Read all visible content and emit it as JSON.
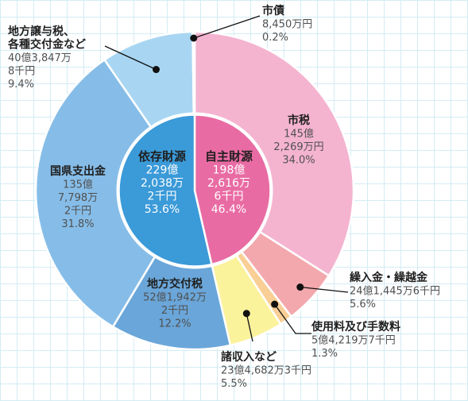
{
  "chart_data": {
    "type": "pie",
    "outer": [
      {
        "name": "市税",
        "amount": "145億\n2,269万円",
        "percent": "34.0%",
        "value": 34.0,
        "color": "#f4b4d0"
      },
      {
        "name": "繰入金・繰越金",
        "amount": "24億1,445万6千円",
        "percent": "5.6%",
        "value": 5.6,
        "color": "#f3a8ae"
      },
      {
        "name": "使用料及び手数料",
        "amount": "5億4,219万7千円",
        "percent": "1.3%",
        "value": 1.3,
        "color": "#f9cf96"
      },
      {
        "name": "諸収入など",
        "amount": "23億4,682万3千円",
        "percent": "5.5%",
        "value": 5.5,
        "color": "#fbf29c"
      },
      {
        "name": "地方交付税",
        "amount": "52億1,942万\n2千円",
        "percent": "12.2%",
        "value": 12.2,
        "color": "#6aa6d9"
      },
      {
        "name": "国県支出金",
        "amount": "135億\n7,798万\n2千円",
        "percent": "31.8%",
        "value": 31.8,
        "color": "#86bde8"
      },
      {
        "name": "地方譲与税、\n各種交付金など",
        "amount": "40億3,847万\n8千円",
        "percent": "9.4%",
        "value": 9.4,
        "color": "#a8d6f2"
      },
      {
        "name": "市債",
        "amount": "8,450万円",
        "percent": "0.2%",
        "value": 0.2,
        "color": "#c8e8f8"
      }
    ],
    "inner": [
      {
        "name": "自主財源",
        "amount": "198億\n2,616万\n6千円",
        "percent": "46.4%",
        "value": 46.4,
        "color": "#e96ba3"
      },
      {
        "name": "依存財源",
        "amount": "229億\n2,038万\n2千円",
        "percent": "53.6%",
        "value": 53.6,
        "color": "#3b9ad8"
      }
    ]
  }
}
